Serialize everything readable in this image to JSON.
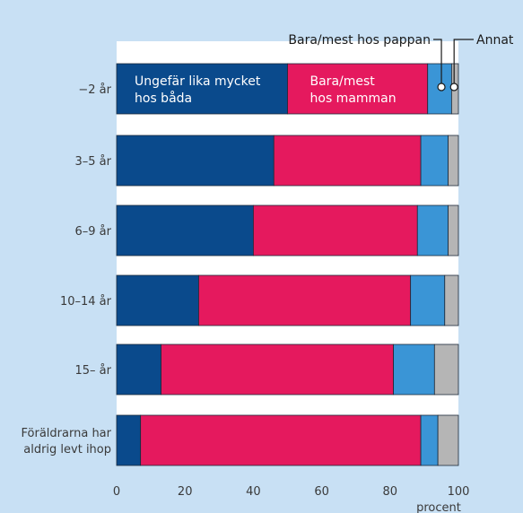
{
  "chart_data": {
    "type": "bar",
    "orientation": "horizontal",
    "stacked": true,
    "categories": [
      "−2 år",
      "3–5 år",
      "6–9 år",
      "10–14 år",
      "15– år",
      "Föräldrarna har aldrig levt ihop"
    ],
    "category_lines": [
      [
        "−2 år"
      ],
      [
        "3–5 år"
      ],
      [
        "6–9 år"
      ],
      [
        "10–14 år"
      ],
      [
        "15– år"
      ],
      [
        "Föräldrarna har",
        "aldrig levt ihop"
      ]
    ],
    "series": [
      {
        "name": "Ungefär lika mycket hos båda",
        "label_lines": [
          "Ungefär lika mycket",
          "hos båda"
        ],
        "color": "#0a4a8c",
        "values": [
          50,
          46,
          40,
          24,
          13,
          7
        ]
      },
      {
        "name": "Bara/mest hos mamman",
        "label_lines": [
          "Bara/mest",
          "hos mamman"
        ],
        "color": "#e5195e",
        "values": [
          41,
          43,
          48,
          62,
          68,
          82
        ]
      },
      {
        "name": "Bara/mest hos pappan",
        "color": "#3a95d6",
        "values": [
          7,
          8,
          9,
          10,
          12,
          5
        ]
      },
      {
        "name": "Annat",
        "color": "#b5b5b5",
        "values": [
          2,
          3,
          3,
          4,
          7,
          6
        ]
      }
    ],
    "xlabel": "procent",
    "xlim": [
      0,
      100
    ],
    "xticks": [
      0,
      20,
      40,
      60,
      80,
      100
    ],
    "legend": "top-right, callouts"
  }
}
